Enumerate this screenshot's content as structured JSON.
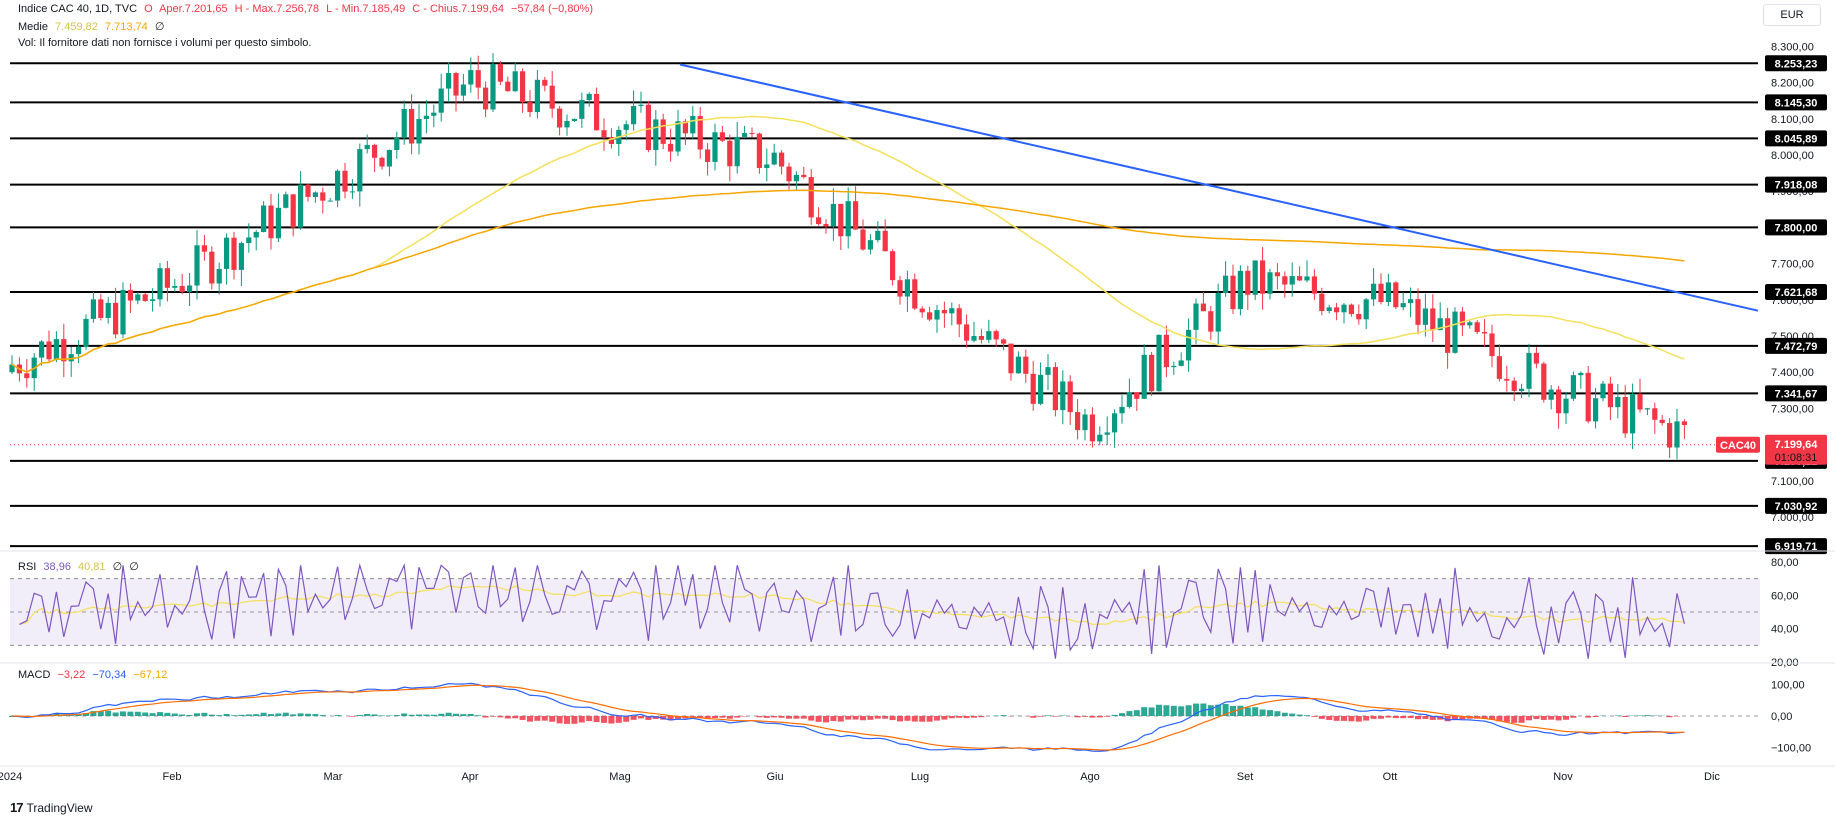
{
  "header": {
    "symbol": "Indice CAC 40, 1D, TVC",
    "open_label": "O",
    "open": "Aper.7.201,65",
    "high": "H - Max.7.256,78",
    "low": "L - Min.7.185,49",
    "close": "C - Chius.7.199,64",
    "change": "−57,84 (−0,80%)",
    "ma_label": "Medie",
    "ma1": "7.459,82",
    "ma2": "7.713,74",
    "ma_extra": "∅",
    "vol_note": "Vol: Il fornitore dati non fornisce i volumi per questo simbolo."
  },
  "currency": "EUR",
  "rsi": {
    "label": "RSI",
    "value": "38,96",
    "ma": "40,81",
    "extra1": "∅",
    "extra2": "∅",
    "ticks": [
      "80,00",
      "60,00",
      "40,00",
      "20,00"
    ]
  },
  "macd": {
    "label": "MACD",
    "hist": "−3,22",
    "macd": "−70,34",
    "signal": "−67,12",
    "ticks": [
      "100,00",
      "0,00",
      "−100,00"
    ]
  },
  "last_price": {
    "symbol": "CAC40",
    "value": "7.199,64",
    "countdown": "01:08:31"
  },
  "brand": "TradingView",
  "colors": {
    "up": "#089981",
    "down": "#f23645",
    "ma_fast": "#f5e05a",
    "ma_slow": "#f7a600",
    "trend": "#2962ff",
    "rsi": "#7e57c2",
    "macd": "#2962ff",
    "signal": "#ff6d00"
  },
  "chart_data": {
    "type": "candlestick",
    "title": "Indice CAC 40, 1D, TVC",
    "x_labels": [
      "2024",
      "Feb",
      "Mar",
      "Apr",
      "Mag",
      "Giu",
      "Lug",
      "Ago",
      "Set",
      "Ott",
      "Nov",
      "Dic"
    ],
    "price_ticks": [
      "8.300,00",
      "8.200,00",
      "8.100,00",
      "8.000,00",
      "7.900,00",
      "7.800,00",
      "7.700,00",
      "7.600,00",
      "7.500,00",
      "7.400,00",
      "7.300,00",
      "7.200,00",
      "7.100,00",
      "7.000,00"
    ],
    "ylim": [
      6920,
      8290
    ],
    "horizontal_levels": [
      "8.253,23",
      "8.145,30",
      "8.045,89",
      "7.918,08",
      "7.800,00",
      "7.621,68",
      "7.472,79",
      "7.341,67",
      "7.155,22",
      "7.030,92",
      "6.919,71"
    ],
    "trendline": {
      "from": [
        "Mag",
        8250
      ],
      "to": [
        "Dic",
        7570
      ]
    },
    "monthly_path": [
      {
        "month": "2024",
        "close": 7420
      },
      {
        "month": "Feb",
        "close": 7640
      },
      {
        "month": "Mar",
        "close": 7930
      },
      {
        "month": "Apr",
        "close": 8200
      },
      {
        "month": "Mag",
        "close": 8090
      },
      {
        "month": "Giu",
        "close": 7990
      },
      {
        "month": "Lug",
        "close": 7620
      },
      {
        "month": "Ago",
        "close": 7260
      },
      {
        "month": "Set",
        "close": 7650
      },
      {
        "month": "Ott",
        "close": 7590
      },
      {
        "month": "Nov",
        "close": 7350
      },
      {
        "month": "Dic",
        "close": 7199.64
      }
    ]
  }
}
